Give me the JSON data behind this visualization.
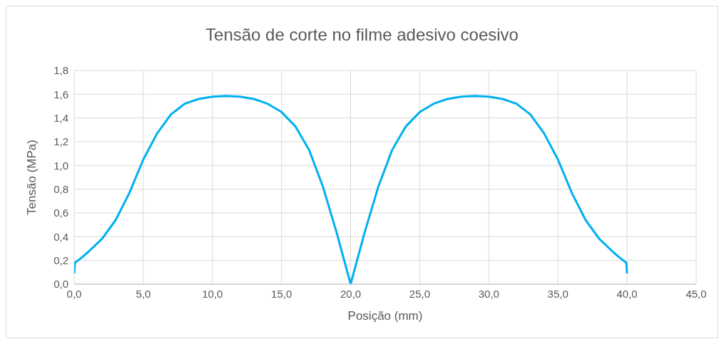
{
  "chart_data": {
    "type": "line",
    "title": "Tensão de corte no filme adesivo coesivo",
    "xlabel": "Posição (mm)",
    "ylabel": "Tensão (MPa)",
    "x": [
      0,
      0.05,
      0.5,
      1,
      2,
      3,
      4,
      5,
      6,
      7,
      8,
      9,
      10,
      11,
      12,
      13,
      14,
      15,
      16,
      17,
      18,
      19,
      20,
      21,
      22,
      23,
      24,
      25,
      26,
      27,
      28,
      29,
      30,
      31,
      32,
      33,
      34,
      35,
      36,
      37,
      38,
      39,
      39.5,
      39.95,
      40
    ],
    "series": [
      {
        "color": "#00b0f0",
        "values": [
          0.09,
          0.18,
          0.22,
          0.27,
          0.38,
          0.54,
          0.77,
          1.05,
          1.27,
          1.43,
          1.52,
          1.56,
          1.58,
          1.585,
          1.58,
          1.56,
          1.52,
          1.45,
          1.33,
          1.13,
          0.82,
          0.43,
          0.0,
          0.43,
          0.82,
          1.13,
          1.33,
          1.45,
          1.52,
          1.56,
          1.58,
          1.585,
          1.58,
          1.56,
          1.52,
          1.43,
          1.27,
          1.05,
          0.77,
          0.54,
          0.38,
          0.27,
          0.22,
          0.18,
          0.09
        ]
      }
    ],
    "xlim": [
      0,
      45
    ],
    "xticks": [
      {
        "value": 0,
        "label": "0,0"
      },
      {
        "value": 5,
        "label": "5,0"
      },
      {
        "value": 10,
        "label": "10,0"
      },
      {
        "value": 15,
        "label": "15,0"
      },
      {
        "value": 20,
        "label": "20,0"
      },
      {
        "value": 25,
        "label": "25,0"
      },
      {
        "value": 30,
        "label": "30,0"
      },
      {
        "value": 35,
        "label": "35,0"
      },
      {
        "value": 40,
        "label": "40,0"
      },
      {
        "value": 45,
        "label": "45,0"
      }
    ],
    "ylim": [
      0,
      1.8
    ],
    "yticks": [
      {
        "value": 0,
        "label": "0,0"
      },
      {
        "value": 0.2,
        "label": "0,2"
      },
      {
        "value": 0.4,
        "label": "0,4"
      },
      {
        "value": 0.6,
        "label": "0,6"
      },
      {
        "value": 0.8,
        "label": "0,8"
      },
      {
        "value": 1,
        "label": "1,0"
      },
      {
        "value": 1.2,
        "label": "1,2"
      },
      {
        "value": 1.4,
        "label": "1,4"
      },
      {
        "value": 1.6,
        "label": "1,6"
      },
      {
        "value": 1.8,
        "label": "1,8"
      }
    ],
    "grid": true,
    "marker": "none",
    "line_style": "solid"
  }
}
